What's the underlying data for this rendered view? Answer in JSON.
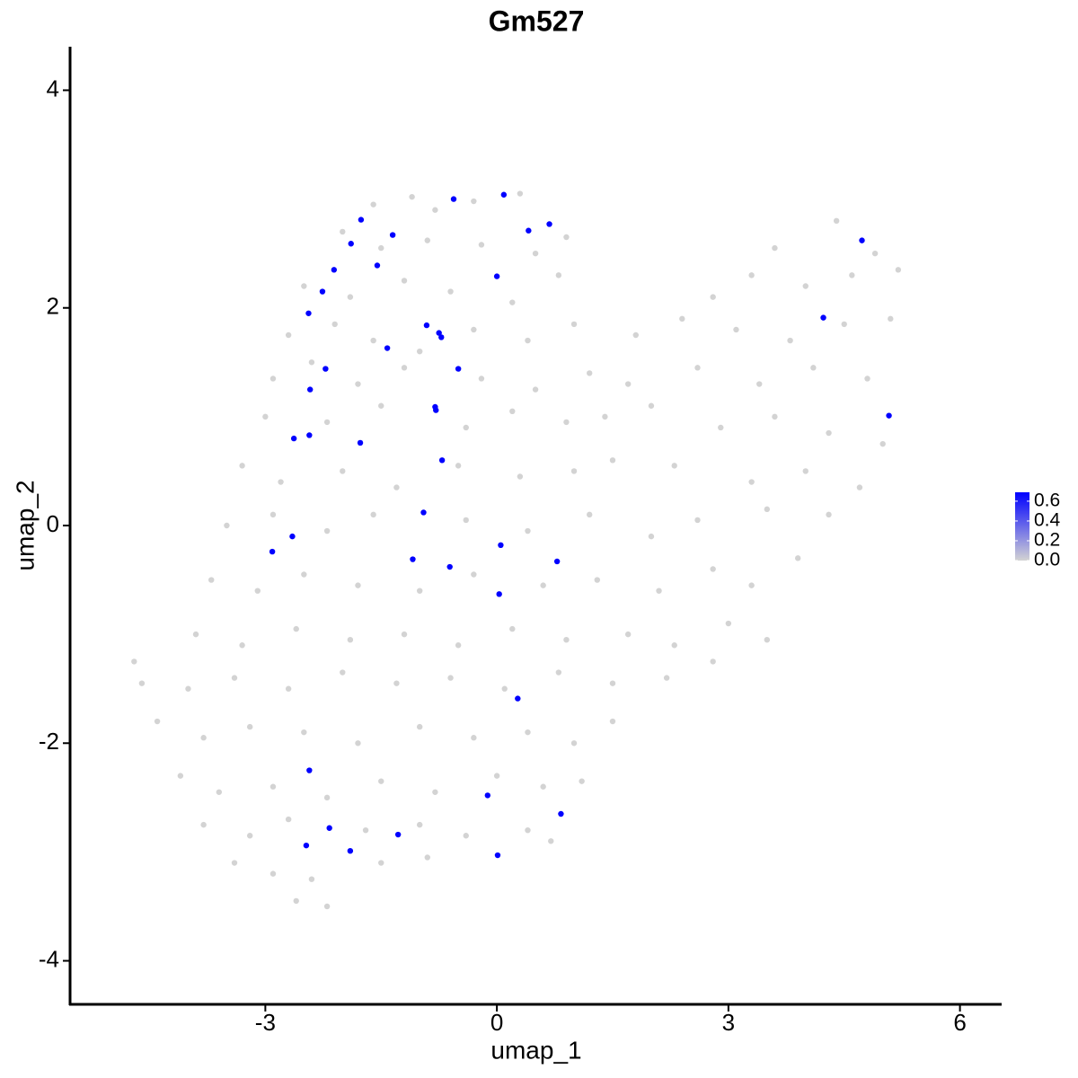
{
  "chart_data": {
    "type": "scatter",
    "title": "Gm527",
    "x_label": "umap_1",
    "y_label": "umap_2",
    "xlim": [
      -5.53,
      6.54
    ],
    "ylim": [
      -4.4,
      4.4
    ],
    "xticks": [
      -3,
      0,
      3,
      6
    ],
    "yticks": [
      -4,
      -2,
      0,
      2,
      4
    ],
    "grid": false,
    "colorbar": {
      "low": "#d3d3d3",
      "high": "#0000ff",
      "lim": [
        0,
        0.69
      ],
      "ticks": [
        {
          "value": 0,
          "label": "0.0"
        },
        0.2,
        0.4,
        0.6
      ]
    },
    "x": [
      -1.6,
      -1.1,
      -0.3,
      0.3,
      -0.8,
      -2.0,
      -1.5,
      -0.9,
      -0.2,
      0.5,
      0.9,
      4.4,
      4.9,
      3.6,
      -2.5,
      -1.9,
      -1.2,
      -0.6,
      0.2,
      0.8,
      2.8,
      3.3,
      4.0,
      4.6,
      5.2,
      -2.7,
      -2.1,
      -1.6,
      -1.0,
      -0.3,
      0.4,
      1.0,
      1.8,
      2.4,
      3.1,
      3.8,
      4.5,
      5.1,
      -2.9,
      -2.4,
      -1.8,
      -1.2,
      -0.2,
      0.5,
      1.2,
      1.7,
      2.6,
      3.4,
      4.1,
      4.8,
      -3.0,
      -2.2,
      -1.5,
      -0.4,
      0.2,
      0.9,
      1.4,
      2.0,
      2.9,
      3.6,
      4.3,
      5.0,
      -3.3,
      -2.8,
      -2.0,
      -1.3,
      -0.5,
      0.3,
      1.0,
      1.5,
      2.3,
      3.3,
      4.0,
      4.7,
      -3.5,
      -2.9,
      -2.2,
      -1.6,
      -0.4,
      0.4,
      1.2,
      2.0,
      2.6,
      3.5,
      4.3,
      -3.7,
      -3.1,
      -2.5,
      -1.8,
      -1.0,
      -0.3,
      0.6,
      1.3,
      2.1,
      2.8,
      3.3,
      3.9,
      -3.9,
      -3.3,
      -2.6,
      -1.9,
      -1.2,
      -0.5,
      0.2,
      0.9,
      1.7,
      2.3,
      3.0,
      3.5,
      -4.7,
      -4.6,
      -4.0,
      -3.4,
      -2.7,
      -2.0,
      -1.3,
      -0.6,
      0.1,
      0.8,
      1.5,
      2.2,
      2.8,
      -4.4,
      -3.8,
      -3.2,
      -2.5,
      -1.8,
      -1.0,
      -0.3,
      0.4,
      1.0,
      1.5,
      -4.1,
      -3.6,
      -2.9,
      -2.2,
      -1.5,
      -0.8,
      0.0,
      0.6,
      1.1,
      -3.8,
      -3.2,
      -2.7,
      -1.7,
      -1.0,
      -0.4,
      0.4,
      0.7,
      -3.4,
      -2.9,
      -2.4,
      -1.5,
      -0.9,
      -2.6,
      -2.2,
      -0.56,
      0.09,
      -1.76,
      0.68,
      0.41,
      -1.35,
      -1.89,
      4.73,
      -2.11,
      -1.55,
      0.0,
      -2.26,
      -2.44,
      4.23,
      -0.91,
      -0.75,
      -0.72,
      -1.42,
      -2.22,
      -0.5,
      -2.42,
      -0.8,
      -0.79,
      5.08,
      -2.63,
      -2.43,
      -1.77,
      -0.71,
      -0.95,
      -2.65,
      -2.91,
      0.05,
      -1.09,
      0.78,
      -0.61,
      0.03,
      0.27,
      -2.43,
      -0.12,
      0.83,
      -2.17,
      -1.28,
      -2.47,
      -1.9,
      0.01
    ],
    "values": [
      2.95,
      3.02,
      2.98,
      3.05,
      2.9,
      2.7,
      2.55,
      2.62,
      2.58,
      2.5,
      2.65,
      2.8,
      2.5,
      2.55,
      2.2,
      2.1,
      2.25,
      2.15,
      2.05,
      2.3,
      2.1,
      2.3,
      2.2,
      2.3,
      2.35,
      1.75,
      1.85,
      1.7,
      1.6,
      1.8,
      1.7,
      1.85,
      1.75,
      1.9,
      1.8,
      1.7,
      1.85,
      1.9,
      1.35,
      1.5,
      1.3,
      1.45,
      1.35,
      1.25,
      1.4,
      1.3,
      1.45,
      1.3,
      1.45,
      1.35,
      1.0,
      0.95,
      1.1,
      0.9,
      1.05,
      0.95,
      1.0,
      1.1,
      0.9,
      1.0,
      0.85,
      0.75,
      0.55,
      0.4,
      0.5,
      0.35,
      0.55,
      0.45,
      0.5,
      0.6,
      0.55,
      0.4,
      0.5,
      0.35,
      0.0,
      0.1,
      -0.05,
      0.1,
      0.05,
      -0.05,
      0.1,
      -0.1,
      0.05,
      0.15,
      0.1,
      -0.5,
      -0.6,
      -0.45,
      -0.55,
      -0.6,
      -0.45,
      -0.55,
      -0.5,
      -0.6,
      -0.4,
      -0.55,
      -0.3,
      -1.0,
      -1.1,
      -0.95,
      -1.05,
      -1.0,
      -1.1,
      -0.95,
      -1.05,
      -1.0,
      -1.1,
      -0.9,
      -1.05,
      -1.25,
      -1.45,
      -1.5,
      -1.4,
      -1.5,
      -1.35,
      -1.45,
      -1.4,
      -1.5,
      -1.35,
      -1.45,
      -1.4,
      -1.25,
      -1.8,
      -1.95,
      -1.85,
      -1.9,
      -2.0,
      -1.85,
      -1.95,
      -1.9,
      -2.0,
      -1.8,
      -2.3,
      -2.45,
      -2.4,
      -2.5,
      -2.35,
      -2.45,
      -2.3,
      -2.4,
      -2.35,
      -2.75,
      -2.85,
      -2.7,
      -2.8,
      -2.75,
      -2.85,
      -2.8,
      -2.9,
      -3.1,
      -3.2,
      -3.25,
      -3.1,
      -3.05,
      -3.45,
      -3.5,
      3.0,
      3.04,
      2.81,
      2.77,
      2.71,
      2.67,
      2.59,
      2.62,
      2.35,
      2.39,
      2.29,
      2.15,
      1.95,
      1.91,
      1.84,
      1.77,
      1.73,
      1.63,
      1.44,
      1.44,
      1.25,
      1.09,
      1.06,
      1.01,
      0.8,
      0.83,
      0.76,
      0.6,
      0.12,
      -0.1,
      -0.24,
      -0.18,
      -0.31,
      -0.33,
      -0.38,
      -0.63,
      -1.59,
      -2.25,
      -2.48,
      -2.65,
      -2.78,
      -2.84,
      -2.94,
      -2.99,
      -3.03
    ],
    "expression": [
      0,
      0,
      0,
      0,
      0,
      0,
      0,
      0,
      0,
      0,
      0,
      0,
      0,
      0,
      0,
      0,
      0,
      0,
      0,
      0,
      0,
      0,
      0,
      0,
      0,
      0,
      0,
      0,
      0,
      0,
      0,
      0,
      0,
      0,
      0,
      0,
      0,
      0,
      0,
      0,
      0,
      0,
      0,
      0,
      0,
      0,
      0,
      0,
      0,
      0,
      0,
      0,
      0,
      0,
      0,
      0,
      0,
      0,
      0,
      0,
      0,
      0,
      0,
      0,
      0,
      0,
      0,
      0,
      0,
      0,
      0,
      0,
      0,
      0,
      0,
      0,
      0,
      0,
      0,
      0,
      0,
      0,
      0,
      0,
      0,
      0,
      0,
      0,
      0,
      0,
      0,
      0,
      0,
      0,
      0,
      0,
      0,
      0,
      0,
      0,
      0,
      0,
      0,
      0,
      0,
      0,
      0,
      0,
      0,
      0,
      0,
      0,
      0,
      0,
      0,
      0,
      0,
      0,
      0,
      0,
      0,
      0,
      0,
      0,
      0,
      0,
      0,
      0,
      0,
      0,
      0,
      0,
      0,
      0,
      0,
      0,
      0,
      0,
      0,
      0,
      0,
      0,
      0,
      0,
      0,
      0,
      0,
      0,
      0,
      0,
      0,
      0,
      0,
      0,
      0,
      0,
      0.69,
      0.69,
      0.69,
      0.69,
      0.69,
      0.69,
      0.69,
      0.69,
      0.69,
      0.69,
      0.69,
      0.69,
      0.69,
      0.69,
      0.69,
      0.69,
      0.69,
      0.69,
      0.69,
      0.69,
      0.69,
      0.69,
      0.69,
      0.69,
      0.69,
      0.69,
      0.69,
      0.69,
      0.69,
      0.69,
      0.69,
      0.69,
      0.69,
      0.69,
      0.69,
      0.69,
      0.69,
      0.69,
      0.69,
      0.69,
      0.69,
      0.69,
      0.69,
      0.69,
      0.69
    ]
  }
}
